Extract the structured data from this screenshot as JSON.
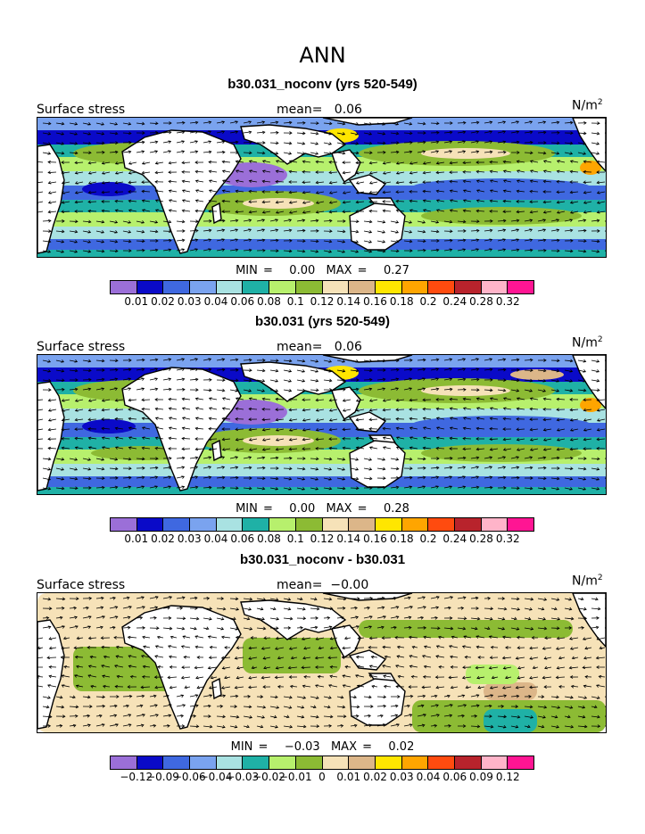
{
  "title": "ANN",
  "palette": {
    "stress": [
      "#9b6fd8",
      "#0a0ac8",
      "#3f68e0",
      "#7aa3ef",
      "#a9e2e2",
      "#1fb1a6",
      "#b7f06d",
      "#8cbb34",
      "#f6e2b8",
      "#dcb689",
      "#ffe600",
      "#ffa500",
      "#ff4b0f",
      "#b8232c",
      "#ffb4c9",
      "#ff1593"
    ],
    "diff": [
      "#9b6fd8",
      "#0a0ac8",
      "#3f68e0",
      "#7aa3ef",
      "#a9e2e2",
      "#1fb1a6",
      "#b7f06d",
      "#8cbb34",
      "#f6e2b8",
      "#dcb689",
      "#ffe600",
      "#ffa500",
      "#ff4b0f",
      "#b8232c",
      "#ffb4c9",
      "#ff1593"
    ]
  },
  "panels": [
    {
      "title": "b30.031_noconv (yrs 520-549)",
      "field_label": "Surface stress",
      "mean_label": "mean=",
      "mean_value": "0.06",
      "units": "N/m",
      "units_exp": "2",
      "min_label": "MIN =",
      "min_value": "0.00",
      "max_label": "MAX =",
      "max_value": "0.27",
      "colorbar_ticks": [
        "0.01",
        "0.02",
        "0.03",
        "0.04",
        "0.06",
        "0.08",
        "0.1",
        "0.12",
        "0.14",
        "0.16",
        "0.18",
        "0.2",
        "0.24",
        "0.28",
        "0.32"
      ]
    },
    {
      "title": "b30.031 (yrs 520-549)",
      "field_label": "Surface stress",
      "mean_label": "mean=",
      "mean_value": "0.06",
      "units": "N/m",
      "units_exp": "2",
      "min_label": "MIN =",
      "min_value": "0.00",
      "max_label": "MAX =",
      "max_value": "0.28",
      "colorbar_ticks": [
        "0.01",
        "0.02",
        "0.03",
        "0.04",
        "0.06",
        "0.08",
        "0.1",
        "0.12",
        "0.14",
        "0.16",
        "0.18",
        "0.2",
        "0.24",
        "0.28",
        "0.32"
      ]
    },
    {
      "title": "b30.031_noconv - b30.031",
      "field_label": "Surface stress",
      "mean_label": "mean=",
      "mean_value": "−0.00",
      "units": "N/m",
      "units_exp": "2",
      "min_label": "MIN =",
      "min_value": "−0.03",
      "max_label": "MAX =",
      "max_value": "0.02",
      "colorbar_ticks": [
        "−0.12",
        "−0.09",
        "−0.06",
        "−0.04",
        "−0.03",
        "−0.02",
        "−0.01",
        "0",
        "0.01",
        "0.02",
        "0.03",
        "0.04",
        "0.06",
        "0.09",
        "0.12"
      ]
    }
  ]
}
